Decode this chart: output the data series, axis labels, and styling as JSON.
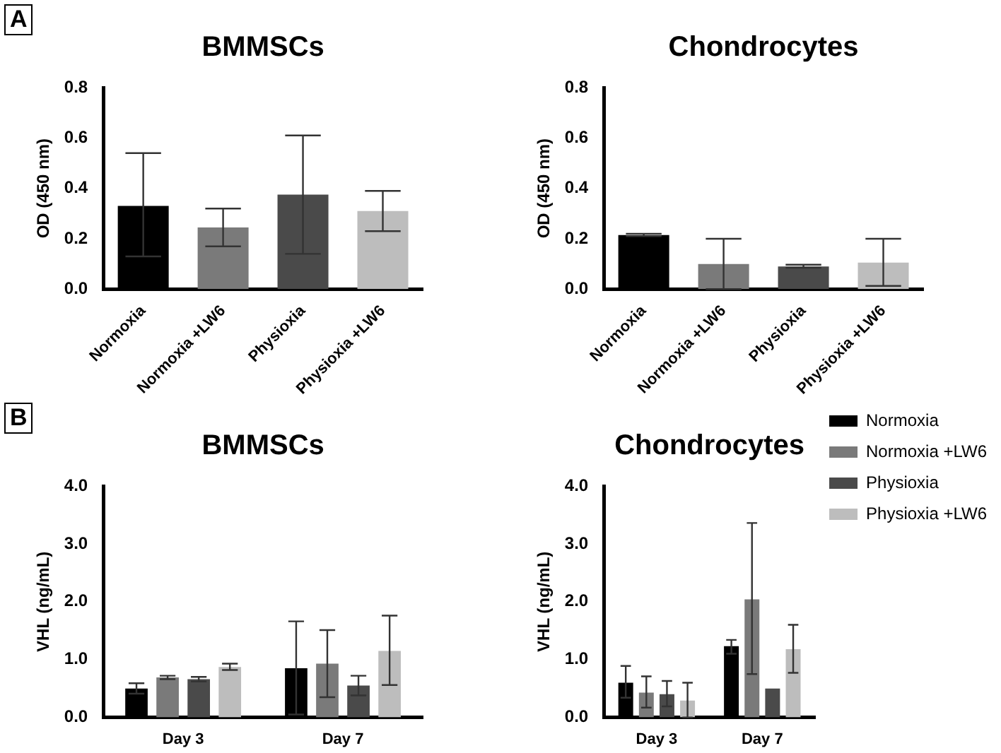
{
  "chart_data": [
    {
      "type": "bar",
      "title": "BMMSCs",
      "ylabel": "OD (450 nm)",
      "annotations": [
        "A"
      ],
      "categories": [
        "Normoxia",
        "Normoxia +LW6",
        "Physioxia",
        "Physioxia +LW6"
      ],
      "values": [
        0.33,
        0.245,
        0.375,
        0.31
      ],
      "colors": [
        "#000000",
        "#7a7a7a",
        "#4a4a4a",
        "#bdbdbd"
      ],
      "errors": [
        [
          0.13,
          0.54
        ],
        [
          0.17,
          0.32
        ],
        [
          0.14,
          0.61
        ],
        [
          0.23,
          0.39
        ]
      ],
      "ylim": [
        0,
        0.8
      ],
      "yticks": [
        {
          "value": 0,
          "label": "0.0"
        },
        0.2,
        0.4,
        0.6,
        0.8
      ],
      "grid": false,
      "legend": false
    },
    {
      "type": "bar",
      "title": "Chondrocytes",
      "ylabel": "OD (450 nm)",
      "categories": [
        "Normoxia",
        "Normoxia +LW6",
        "Physioxia",
        "Physioxia +LW6"
      ],
      "values": [
        0.215,
        0.1,
        0.09,
        0.105
      ],
      "colors": [
        "#000000",
        "#7a7a7a",
        "#4a4a4a",
        "#bdbdbd"
      ],
      "errors": [
        [
          0.21,
          0.22
        ],
        [
          0,
          0.2
        ],
        [
          0.085,
          0.097
        ],
        [
          0.013,
          0.2
        ]
      ],
      "ylim": [
        0,
        0.8
      ],
      "yticks": [
        {
          "value": 0,
          "label": "0.0"
        },
        0.2,
        0.4,
        0.6,
        0.8
      ],
      "grid": false,
      "legend": false
    },
    {
      "type": "bar",
      "title": "BMMSCs",
      "ylabel": "VHL (ng/mL)",
      "annotations": [
        "B"
      ],
      "categories": [
        "Day 3",
        "Day 7"
      ],
      "series": [
        {
          "color": "#000000",
          "values": [
            0.5,
            0.85
          ],
          "errors": [
            [
              0.41,
              0.59
            ],
            [
              0.05,
              1.66
            ]
          ]
        },
        {
          "color": "#7a7a7a",
          "values": [
            0.69,
            0.93
          ],
          "errors": [
            [
              0.66,
              0.72
            ],
            [
              0.35,
              1.51
            ]
          ]
        },
        {
          "color": "#4a4a4a",
          "values": [
            0.66,
            0.55
          ],
          "errors": [
            [
              0.62,
              0.7
            ],
            [
              0.38,
              0.72
            ]
          ]
        },
        {
          "color": "#bdbdbd",
          "values": [
            0.87,
            1.15
          ],
          "errors": [
            [
              0.82,
              0.93
            ],
            [
              0.56,
              1.76
            ]
          ]
        }
      ],
      "ylim": [
        0,
        4
      ],
      "yticks": [
        {
          "value": 0,
          "label": "0.0"
        },
        {
          "value": 1,
          "label": "1.0"
        },
        {
          "value": 2,
          "label": "2.0"
        },
        {
          "value": 3,
          "label": "3.0"
        },
        {
          "value": 4,
          "label": "4.0"
        }
      ],
      "grid": false,
      "legend": false
    },
    {
      "type": "bar",
      "title": "Chondrocytes",
      "ylabel": "VHL (ng/mL)",
      "categories": [
        "Day 3",
        "Day 7"
      ],
      "series": [
        {
          "name": "Normoxia",
          "color": "#000000",
          "values": [
            0.6,
            1.23
          ],
          "errors": [
            [
              0.34,
              0.89
            ],
            [
              1.1,
              1.34
            ]
          ]
        },
        {
          "name": "Normoxia +LW6",
          "color": "#7a7a7a",
          "values": [
            0.43,
            2.04
          ],
          "errors": [
            [
              0.17,
              0.71
            ],
            [
              0.75,
              3.36
            ]
          ]
        },
        {
          "name": "Physioxia",
          "color": "#4a4a4a",
          "values": [
            0.4,
            0.5
          ],
          "errors": [
            [
              0.19,
              0.63
            ],
            null
          ]
        },
        {
          "name": "Physioxia +LW6",
          "color": "#bdbdbd",
          "values": [
            0.29,
            1.18
          ],
          "errors": [
            [
              0,
              0.6
            ],
            [
              0.77,
              1.6
            ]
          ]
        }
      ],
      "ylim": [
        0,
        4
      ],
      "yticks": [
        {
          "value": 0,
          "label": "0.0"
        },
        {
          "value": 1,
          "label": "1.0"
        },
        {
          "value": 2,
          "label": "2.0"
        },
        {
          "value": 3,
          "label": "3.0"
        },
        {
          "value": 4,
          "label": "4.0"
        }
      ],
      "grid": false,
      "legend": "right"
    }
  ]
}
